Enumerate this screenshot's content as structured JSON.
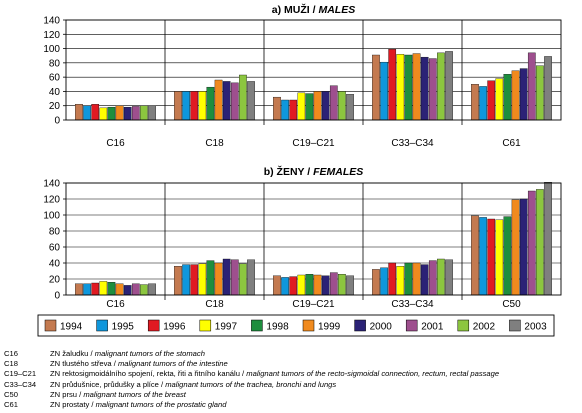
{
  "chart_data": [
    {
      "type": "bar",
      "title_prefix": "a) MUŽI / ",
      "title_italic": "MALES",
      "categories": [
        "C16",
        "C18",
        "C19–C21",
        "C33–C34",
        "C61"
      ],
      "ylim": [
        0,
        140
      ],
      "yticks": [
        0,
        20,
        40,
        60,
        80,
        100,
        120,
        140
      ],
      "grid": true,
      "series": [
        {
          "name": "1994",
          "color": "#C47A50",
          "values": [
            22,
            40,
            32,
            91,
            50
          ]
        },
        {
          "name": "1995",
          "color": "#0F97DC",
          "values": [
            20,
            40,
            28,
            81,
            47
          ]
        },
        {
          "name": "1996",
          "color": "#E01A22",
          "values": [
            22,
            40,
            28,
            99,
            55
          ]
        },
        {
          "name": "1997",
          "color": "#FFFF00",
          "values": [
            17,
            40,
            38,
            92,
            58
          ]
        },
        {
          "name": "1998",
          "color": "#1E8E3E",
          "values": [
            18,
            46,
            37,
            91,
            64
          ]
        },
        {
          "name": "1999",
          "color": "#F08A1E",
          "values": [
            20,
            56,
            40,
            93,
            69
          ]
        },
        {
          "name": "2000",
          "color": "#2B2276",
          "values": [
            18,
            54,
            40,
            88,
            72
          ]
        },
        {
          "name": "2001",
          "color": "#9E4F8E",
          "values": [
            19,
            52,
            48,
            86,
            94
          ]
        },
        {
          "name": "2002",
          "color": "#8CC63F",
          "values": [
            20,
            63,
            40,
            94,
            76
          ]
        },
        {
          "name": "2003",
          "color": "#7F7F7F",
          "values": [
            20,
            54,
            36,
            96,
            89
          ]
        }
      ]
    },
    {
      "type": "bar",
      "title_prefix": "b) ŽENY / ",
      "title_italic": "FEMALES",
      "categories": [
        "C16",
        "C18",
        "C19–C21",
        "C33–C34",
        "C50"
      ],
      "ylim": [
        0,
        140
      ],
      "yticks": [
        0,
        20,
        40,
        60,
        80,
        100,
        120,
        140
      ],
      "grid": true,
      "series": [
        {
          "name": "1994",
          "color": "#C47A50",
          "values": [
            14,
            36,
            24,
            32,
            99
          ]
        },
        {
          "name": "1995",
          "color": "#0F97DC",
          "values": [
            14,
            38,
            22,
            34,
            97
          ]
        },
        {
          "name": "1996",
          "color": "#E01A22",
          "values": [
            15,
            38,
            23,
            40,
            95
          ]
        },
        {
          "name": "1997",
          "color": "#FFFF00",
          "values": [
            17,
            39,
            25,
            36,
            94
          ]
        },
        {
          "name": "1998",
          "color": "#1E8E3E",
          "values": [
            16,
            43,
            26,
            40,
            98
          ]
        },
        {
          "name": "1999",
          "color": "#F08A1E",
          "values": [
            14,
            40,
            25,
            40,
            119
          ]
        },
        {
          "name": "2000",
          "color": "#2B2276",
          "values": [
            12,
            45,
            24,
            38,
            120
          ]
        },
        {
          "name": "2001",
          "color": "#9E4F8E",
          "values": [
            14,
            44,
            28,
            43,
            130
          ]
        },
        {
          "name": "2002",
          "color": "#8CC63F",
          "values": [
            13,
            39,
            26,
            45,
            132
          ]
        },
        {
          "name": "2003",
          "color": "#7F7F7F",
          "values": [
            14,
            44,
            24,
            44,
            141
          ]
        }
      ]
    }
  ],
  "footnotes": [
    {
      "code": "C16",
      "desc": "ZN žaludku / malignant tumors of the stomach"
    },
    {
      "code": "C18",
      "desc": "ZN tlustého střeva / malignant tumors of the intestine"
    },
    {
      "code": "C19–C21",
      "desc": "ZN rektosigmoidálního spojení, rekta, řiti a řitního kanálu / malignant tumors of the recto-sigmoidal connection, rectum, rectal passage"
    },
    {
      "code": "C33–C34",
      "desc": "ZN průdušnice, průdušky a plíce / malignant tumors of the trachea, bronchi and lungs"
    },
    {
      "code": "C50",
      "desc": "ZN prsu / malignant tumors of the breast"
    },
    {
      "code": "C61",
      "desc": "ZN prostaty / malignant tumors of the prostatic gland"
    }
  ]
}
